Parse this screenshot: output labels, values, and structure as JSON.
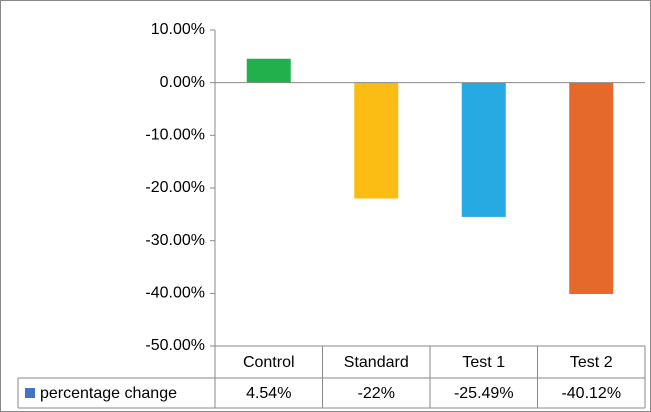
{
  "chart_data": {
    "type": "bar",
    "categories": [
      "Control",
      "Standard",
      "Test 1",
      "Test 2"
    ],
    "series": [
      {
        "name": "percentage change",
        "color": "#4472c4",
        "values": [
          4.54,
          -22,
          -25.49,
          -40.12
        ],
        "value_labels": [
          "4.54%",
          "-22%",
          "-25.49%",
          "-40.12%"
        ]
      }
    ],
    "colors": [
      "#21b04b",
      "#fbbd14",
      "#27aae1",
      "#e4692a"
    ],
    "ylim": [
      -50,
      10
    ],
    "yticks": [
      {
        "value": -50,
        "label": "-50.00%"
      },
      {
        "value": -40,
        "label": "-40.00%"
      },
      {
        "value": -30,
        "label": "-30.00%"
      },
      {
        "value": -20,
        "label": "-20.00%"
      },
      {
        "value": -10,
        "label": "-10.00%"
      },
      {
        "value": 0,
        "label": "0.00%"
      },
      {
        "value": 10,
        "label": "10.00%"
      }
    ],
    "grid": false
  }
}
